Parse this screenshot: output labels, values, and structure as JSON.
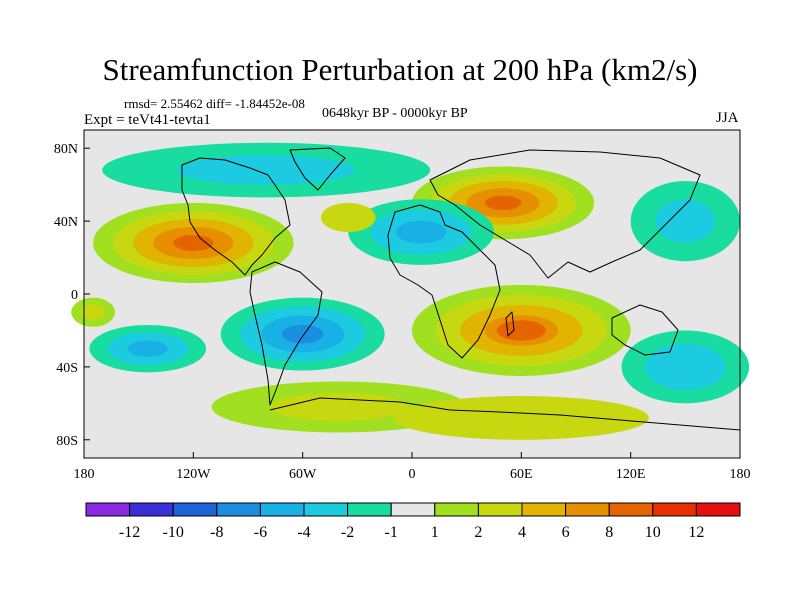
{
  "chart_data": {
    "type": "heatmap",
    "title": "Streamfunction Perturbation at 200 hPa (km2/s)",
    "stats": "rmsd= 2.55462  diff= -1.84452e-08",
    "experiment": "Expt = teVt41-tevta1",
    "period": "0648kyr BP - 0000kyr BP",
    "season": "JJA",
    "x_ticks": [
      "180",
      "120W",
      "60W",
      "0",
      "60E",
      "120E",
      "180"
    ],
    "x_tick_values": [
      -180,
      -120,
      -60,
      0,
      60,
      120,
      180
    ],
    "y_ticks": [
      "80N",
      "40N",
      "0",
      "40S",
      "80S"
    ],
    "y_tick_values": [
      80,
      40,
      0,
      -40,
      -80
    ],
    "xlim": [
      -180,
      180
    ],
    "ylim": [
      -90,
      90
    ],
    "colorbar": {
      "labels": [
        "-12",
        "-10",
        "-8",
        "-6",
        "-4",
        "-2",
        "-1",
        "1",
        "2",
        "4",
        "6",
        "8",
        "10",
        "12"
      ],
      "colors": [
        "#8a2be2",
        "#3a2fd8",
        "#1f63d8",
        "#1a8fe0",
        "#19b0e6",
        "#1ccbe0",
        "#19dca0",
        "#e6e6e6",
        "#a0e020",
        "#c8d810",
        "#e0b400",
        "#e69000",
        "#e66400",
        "#e63000",
        "#e61010"
      ]
    },
    "anomalies": [
      {
        "lon": -120,
        "lat": 28,
        "value": 9,
        "rx": 55,
        "ry": 22
      },
      {
        "lon": 50,
        "lat": 50,
        "value": 9,
        "rx": 50,
        "ry": 20
      },
      {
        "lon": 60,
        "lat": -20,
        "value": 8,
        "rx": 60,
        "ry": 25
      },
      {
        "lon": -60,
        "lat": -22,
        "value": -7,
        "rx": 45,
        "ry": 20
      },
      {
        "lon": -145,
        "lat": -30,
        "value": -5,
        "rx": 32,
        "ry": 13
      },
      {
        "lon": 5,
        "lat": 34,
        "value": -5,
        "rx": 40,
        "ry": 18
      },
      {
        "lon": 150,
        "lat": -40,
        "value": -4,
        "rx": 35,
        "ry": 20
      },
      {
        "lon": -80,
        "lat": 68,
        "value": -3,
        "rx": 90,
        "ry": 15
      },
      {
        "lon": 150,
        "lat": 40,
        "value": -3,
        "rx": 30,
        "ry": 22
      },
      {
        "lon": -40,
        "lat": -62,
        "value": 3,
        "rx": 70,
        "ry": 14
      },
      {
        "lon": 60,
        "lat": -68,
        "value": 2,
        "rx": 70,
        "ry": 12
      },
      {
        "lon": -175,
        "lat": -10,
        "value": 3,
        "rx": 12,
        "ry": 8
      },
      {
        "lon": -35,
        "lat": 42,
        "value": 2,
        "rx": 15,
        "ry": 8
      }
    ]
  }
}
